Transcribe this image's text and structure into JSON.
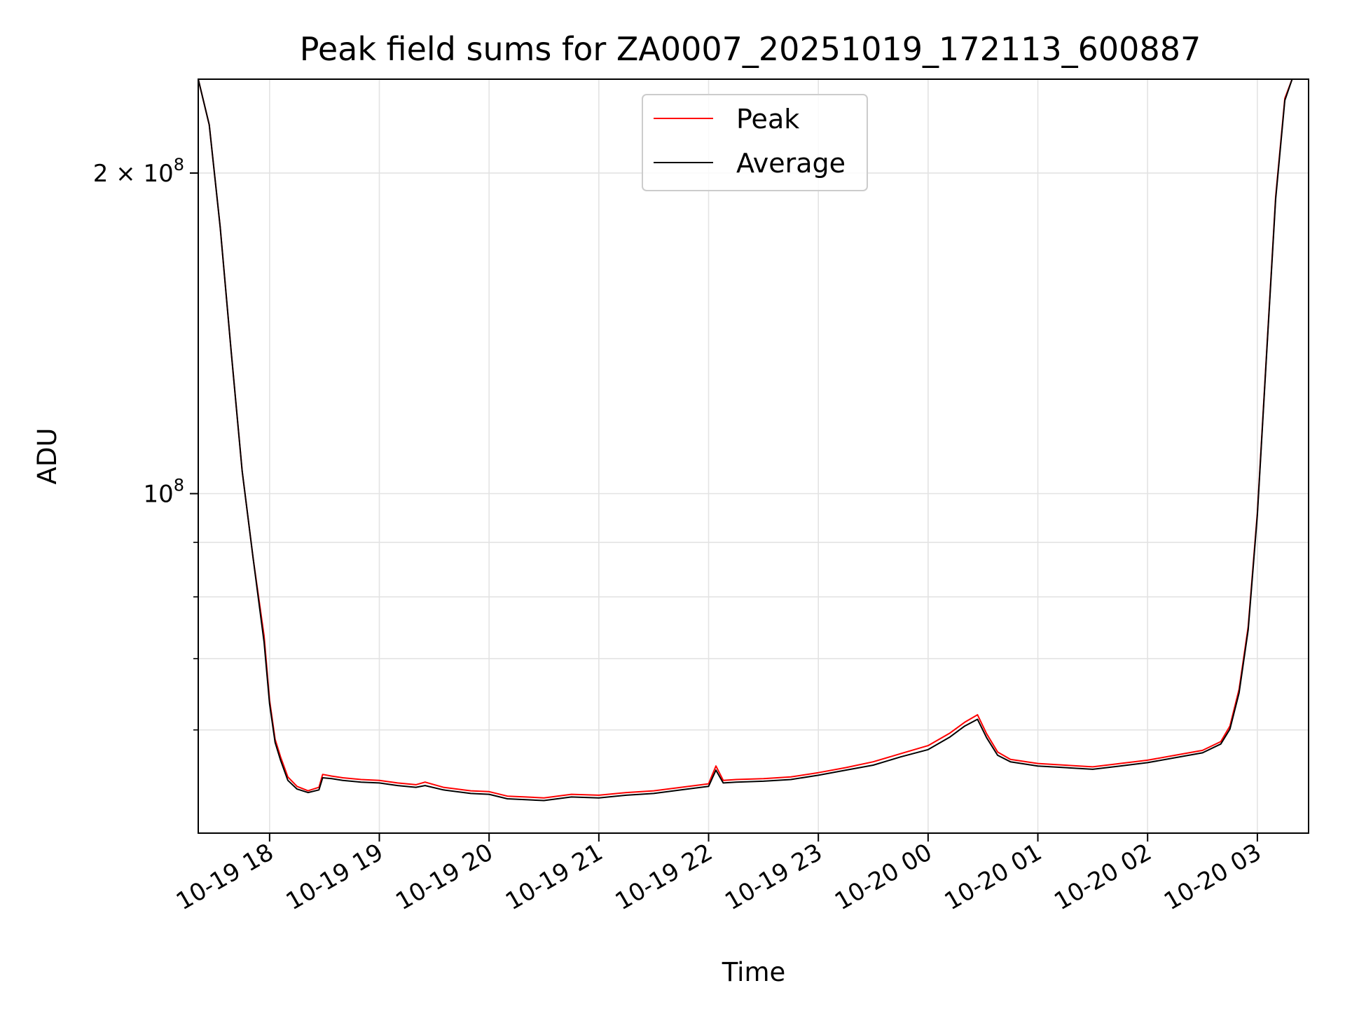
{
  "chart_data": {
    "type": "line",
    "title": "Peak field sums for ZA0007_20251019_172113_600887",
    "xlabel": "Time",
    "ylabel": "ADU",
    "x_scale": "time",
    "y_scale": "log",
    "xlim": [
      "2025-10-19 17:21",
      "2025-10-20 03:28"
    ],
    "ylim": [
      48000000,
      245000000
    ],
    "grid": true,
    "legend_position": "top-center",
    "x_ticks": [
      {
        "t": "2025-10-19 18:00",
        "label": "10-19 18"
      },
      {
        "t": "2025-10-19 19:00",
        "label": "10-19 19"
      },
      {
        "t": "2025-10-19 20:00",
        "label": "10-19 20"
      },
      {
        "t": "2025-10-19 21:00",
        "label": "10-19 21"
      },
      {
        "t": "2025-10-19 22:00",
        "label": "10-19 22"
      },
      {
        "t": "2025-10-19 23:00",
        "label": "10-19 23"
      },
      {
        "t": "2025-10-20 00:00",
        "label": "10-20 00"
      },
      {
        "t": "2025-10-20 01:00",
        "label": "10-20 01"
      },
      {
        "t": "2025-10-20 02:00",
        "label": "10-20 02"
      },
      {
        "t": "2025-10-20 03:00",
        "label": "10-20 03"
      }
    ],
    "y_major_ticks": [
      {
        "value": 100000000,
        "base": "10",
        "exp": "8"
      },
      {
        "value": 200000000,
        "base": "2 × 10",
        "exp": "8"
      }
    ],
    "y_minor_ticks": [
      60000000,
      70000000,
      80000000,
      90000000
    ],
    "series": [
      {
        "name": "Peak",
        "color": "#ff0000",
        "points": [
          [
            "2025-10-19 17:21",
            245000000
          ],
          [
            "2025-10-19 17:27",
            222000000
          ],
          [
            "2025-10-19 17:33",
            178000000
          ],
          [
            "2025-10-19 17:39",
            136000000
          ],
          [
            "2025-10-19 17:45",
            105000000
          ],
          [
            "2025-10-19 17:51",
            87000000
          ],
          [
            "2025-10-19 17:57",
            73500000
          ],
          [
            "2025-10-19 18:00",
            64000000
          ],
          [
            "2025-10-19 18:03",
            58800000
          ],
          [
            "2025-10-19 18:06",
            56600000
          ],
          [
            "2025-10-19 18:10",
            54200000
          ],
          [
            "2025-10-19 18:15",
            53100000
          ],
          [
            "2025-10-19 18:21",
            52600000
          ],
          [
            "2025-10-19 18:27",
            53000000
          ],
          [
            "2025-10-19 18:29",
            54500000
          ],
          [
            "2025-10-19 18:34",
            54300000
          ],
          [
            "2025-10-19 18:40",
            54100000
          ],
          [
            "2025-10-19 18:50",
            53900000
          ],
          [
            "2025-10-19 19:00",
            53800000
          ],
          [
            "2025-10-19 19:10",
            53500000
          ],
          [
            "2025-10-19 19:20",
            53300000
          ],
          [
            "2025-10-19 19:25",
            53600000
          ],
          [
            "2025-10-19 19:35",
            53000000
          ],
          [
            "2025-10-19 19:50",
            52600000
          ],
          [
            "2025-10-19 20:00",
            52500000
          ],
          [
            "2025-10-19 20:10",
            52000000
          ],
          [
            "2025-10-19 20:20",
            51900000
          ],
          [
            "2025-10-19 20:30",
            51800000
          ],
          [
            "2025-10-19 20:45",
            52200000
          ],
          [
            "2025-10-19 21:00",
            52100000
          ],
          [
            "2025-10-19 21:15",
            52400000
          ],
          [
            "2025-10-19 21:30",
            52600000
          ],
          [
            "2025-10-19 21:45",
            53000000
          ],
          [
            "2025-10-19 22:00",
            53400000
          ],
          [
            "2025-10-19 22:04",
            55500000
          ],
          [
            "2025-10-19 22:08",
            53800000
          ],
          [
            "2025-10-19 22:15",
            53900000
          ],
          [
            "2025-10-19 22:30",
            54000000
          ],
          [
            "2025-10-19 22:45",
            54200000
          ],
          [
            "2025-10-19 23:00",
            54700000
          ],
          [
            "2025-10-19 23:15",
            55300000
          ],
          [
            "2025-10-19 23:30",
            56000000
          ],
          [
            "2025-10-19 23:45",
            57000000
          ],
          [
            "2025-10-20 00:00",
            58000000
          ],
          [
            "2025-10-20 00:12",
            59600000
          ],
          [
            "2025-10-20 00:20",
            61000000
          ],
          [
            "2025-10-20 00:27",
            62000000
          ],
          [
            "2025-10-20 00:32",
            59500000
          ],
          [
            "2025-10-20 00:38",
            57200000
          ],
          [
            "2025-10-20 00:45",
            56300000
          ],
          [
            "2025-10-20 01:00",
            55800000
          ],
          [
            "2025-10-20 01:15",
            55600000
          ],
          [
            "2025-10-20 01:30",
            55400000
          ],
          [
            "2025-10-20 01:45",
            55800000
          ],
          [
            "2025-10-20 02:00",
            56200000
          ],
          [
            "2025-10-20 02:15",
            56800000
          ],
          [
            "2025-10-20 02:30",
            57400000
          ],
          [
            "2025-10-20 02:40",
            58500000
          ],
          [
            "2025-10-20 02:45",
            60500000
          ],
          [
            "2025-10-20 02:50",
            65500000
          ],
          [
            "2025-10-20 02:55",
            75000000
          ],
          [
            "2025-10-20 03:00",
            96000000
          ],
          [
            "2025-10-20 03:05",
            135000000
          ],
          [
            "2025-10-20 03:10",
            190000000
          ],
          [
            "2025-10-20 03:15",
            235000000
          ],
          [
            "2025-10-20 03:19",
            245000000
          ]
        ]
      },
      {
        "name": "Average",
        "color": "#000000",
        "points": [
          [
            "2025-10-19 17:21",
            245000000
          ],
          [
            "2025-10-19 17:27",
            222000000
          ],
          [
            "2025-10-19 17:33",
            178000000
          ],
          [
            "2025-10-19 17:39",
            136000000
          ],
          [
            "2025-10-19 17:45",
            105000000
          ],
          [
            "2025-10-19 17:51",
            87000000
          ],
          [
            "2025-10-19 17:57",
            72500000
          ],
          [
            "2025-10-19 18:00",
            63500000
          ],
          [
            "2025-10-19 18:03",
            58400000
          ],
          [
            "2025-10-19 18:06",
            56200000
          ],
          [
            "2025-10-19 18:10",
            53800000
          ],
          [
            "2025-10-19 18:15",
            52800000
          ],
          [
            "2025-10-19 18:21",
            52400000
          ],
          [
            "2025-10-19 18:27",
            52700000
          ],
          [
            "2025-10-19 18:29",
            54100000
          ],
          [
            "2025-10-19 18:34",
            54000000
          ],
          [
            "2025-10-19 18:40",
            53800000
          ],
          [
            "2025-10-19 18:50",
            53600000
          ],
          [
            "2025-10-19 19:00",
            53500000
          ],
          [
            "2025-10-19 19:10",
            53200000
          ],
          [
            "2025-10-19 19:20",
            53000000
          ],
          [
            "2025-10-19 19:25",
            53200000
          ],
          [
            "2025-10-19 19:35",
            52700000
          ],
          [
            "2025-10-19 19:50",
            52300000
          ],
          [
            "2025-10-19 20:00",
            52200000
          ],
          [
            "2025-10-19 20:10",
            51700000
          ],
          [
            "2025-10-19 20:20",
            51600000
          ],
          [
            "2025-10-19 20:30",
            51500000
          ],
          [
            "2025-10-19 20:45",
            51900000
          ],
          [
            "2025-10-19 21:00",
            51800000
          ],
          [
            "2025-10-19 21:15",
            52100000
          ],
          [
            "2025-10-19 21:30",
            52300000
          ],
          [
            "2025-10-19 21:45",
            52700000
          ],
          [
            "2025-10-19 22:00",
            53100000
          ],
          [
            "2025-10-19 22:04",
            55000000
          ],
          [
            "2025-10-19 22:08",
            53500000
          ],
          [
            "2025-10-19 22:15",
            53600000
          ],
          [
            "2025-10-19 22:30",
            53700000
          ],
          [
            "2025-10-19 22:45",
            53900000
          ],
          [
            "2025-10-19 23:00",
            54400000
          ],
          [
            "2025-10-19 23:15",
            55000000
          ],
          [
            "2025-10-19 23:30",
            55600000
          ],
          [
            "2025-10-19 23:45",
            56600000
          ],
          [
            "2025-10-20 00:00",
            57500000
          ],
          [
            "2025-10-20 00:12",
            59100000
          ],
          [
            "2025-10-20 00:20",
            60500000
          ],
          [
            "2025-10-20 00:27",
            61400000
          ],
          [
            "2025-10-20 00:32",
            59000000
          ],
          [
            "2025-10-20 00:38",
            56800000
          ],
          [
            "2025-10-20 00:45",
            56000000
          ],
          [
            "2025-10-20 01:00",
            55500000
          ],
          [
            "2025-10-20 01:15",
            55300000
          ],
          [
            "2025-10-20 01:30",
            55100000
          ],
          [
            "2025-10-20 01:45",
            55500000
          ],
          [
            "2025-10-20 02:00",
            55900000
          ],
          [
            "2025-10-20 02:15",
            56500000
          ],
          [
            "2025-10-20 02:30",
            57100000
          ],
          [
            "2025-10-20 02:40",
            58200000
          ],
          [
            "2025-10-20 02:45",
            60100000
          ],
          [
            "2025-10-20 02:50",
            65000000
          ],
          [
            "2025-10-20 02:55",
            74500000
          ],
          [
            "2025-10-20 03:00",
            95500000
          ],
          [
            "2025-10-20 03:05",
            134500000
          ],
          [
            "2025-10-20 03:10",
            189000000
          ],
          [
            "2025-10-20 03:15",
            234000000
          ],
          [
            "2025-10-20 03:19",
            245000000
          ]
        ]
      }
    ]
  }
}
